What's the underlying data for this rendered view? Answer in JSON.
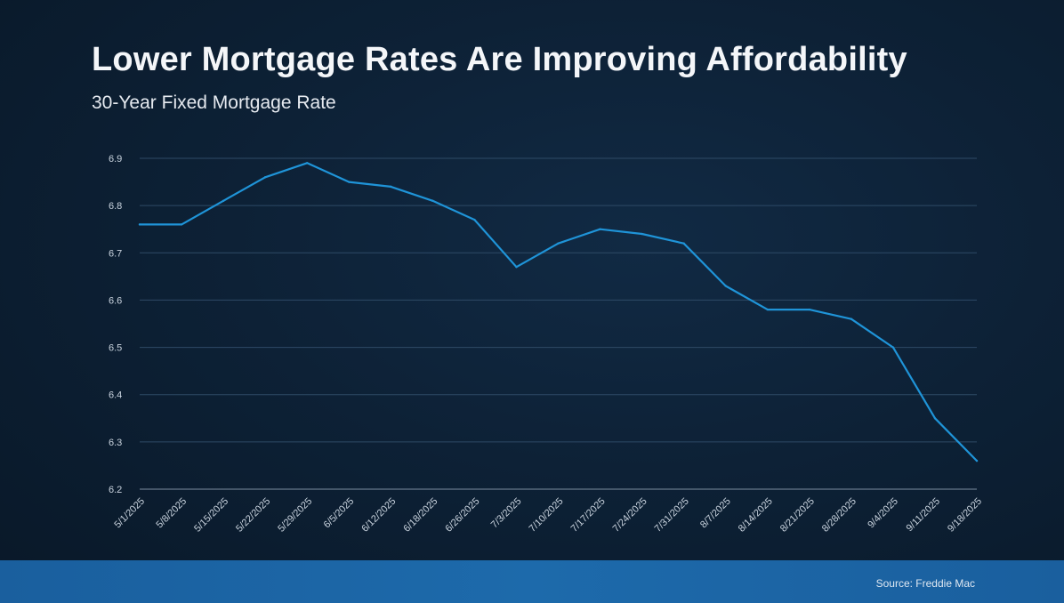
{
  "title": "Lower Mortgage Rates Are Improving Affordability",
  "subtitle": "30-Year Fixed Mortgage Rate",
  "source": "Source: Freddie Mac",
  "colors": {
    "line": "#1f94d8",
    "grid": "#2e4a66",
    "tick_text": "#c9d3de",
    "footer": "#1d6aab"
  },
  "chart_data": {
    "type": "line",
    "title": "Lower Mortgage Rates Are Improving Affordability",
    "subtitle": "30-Year Fixed Mortgage Rate",
    "xlabel": "",
    "ylabel": "",
    "y_ticks": [
      "6.2",
      "6.3",
      "6.4",
      "6.5",
      "6.6",
      "6.7",
      "6.8",
      "6.9"
    ],
    "ylim": [
      6.2,
      6.9
    ],
    "grid": true,
    "legend": "none",
    "x": [
      "5/1/2025",
      "5/8/2025",
      "5/15/2025",
      "5/22/2025",
      "5/29/2025",
      "6/5/2025",
      "6/12/2025",
      "6/18/2025",
      "6/26/2025",
      "7/3/2025",
      "7/10/2025",
      "7/17/2025",
      "7/24/2025",
      "7/31/2025",
      "8/7/2025",
      "8/14/2025",
      "8/21/2025",
      "8/28/2025",
      "9/4/2025",
      "9/11/2025",
      "9/18/2025"
    ],
    "series": [
      {
        "values": [
          6.76,
          6.76,
          6.81,
          6.86,
          6.89,
          6.85,
          6.84,
          6.81,
          6.77,
          6.67,
          6.72,
          6.75,
          6.74,
          6.72,
          6.63,
          6.58,
          6.58,
          6.56,
          6.5,
          6.35,
          6.26
        ]
      }
    ]
  }
}
